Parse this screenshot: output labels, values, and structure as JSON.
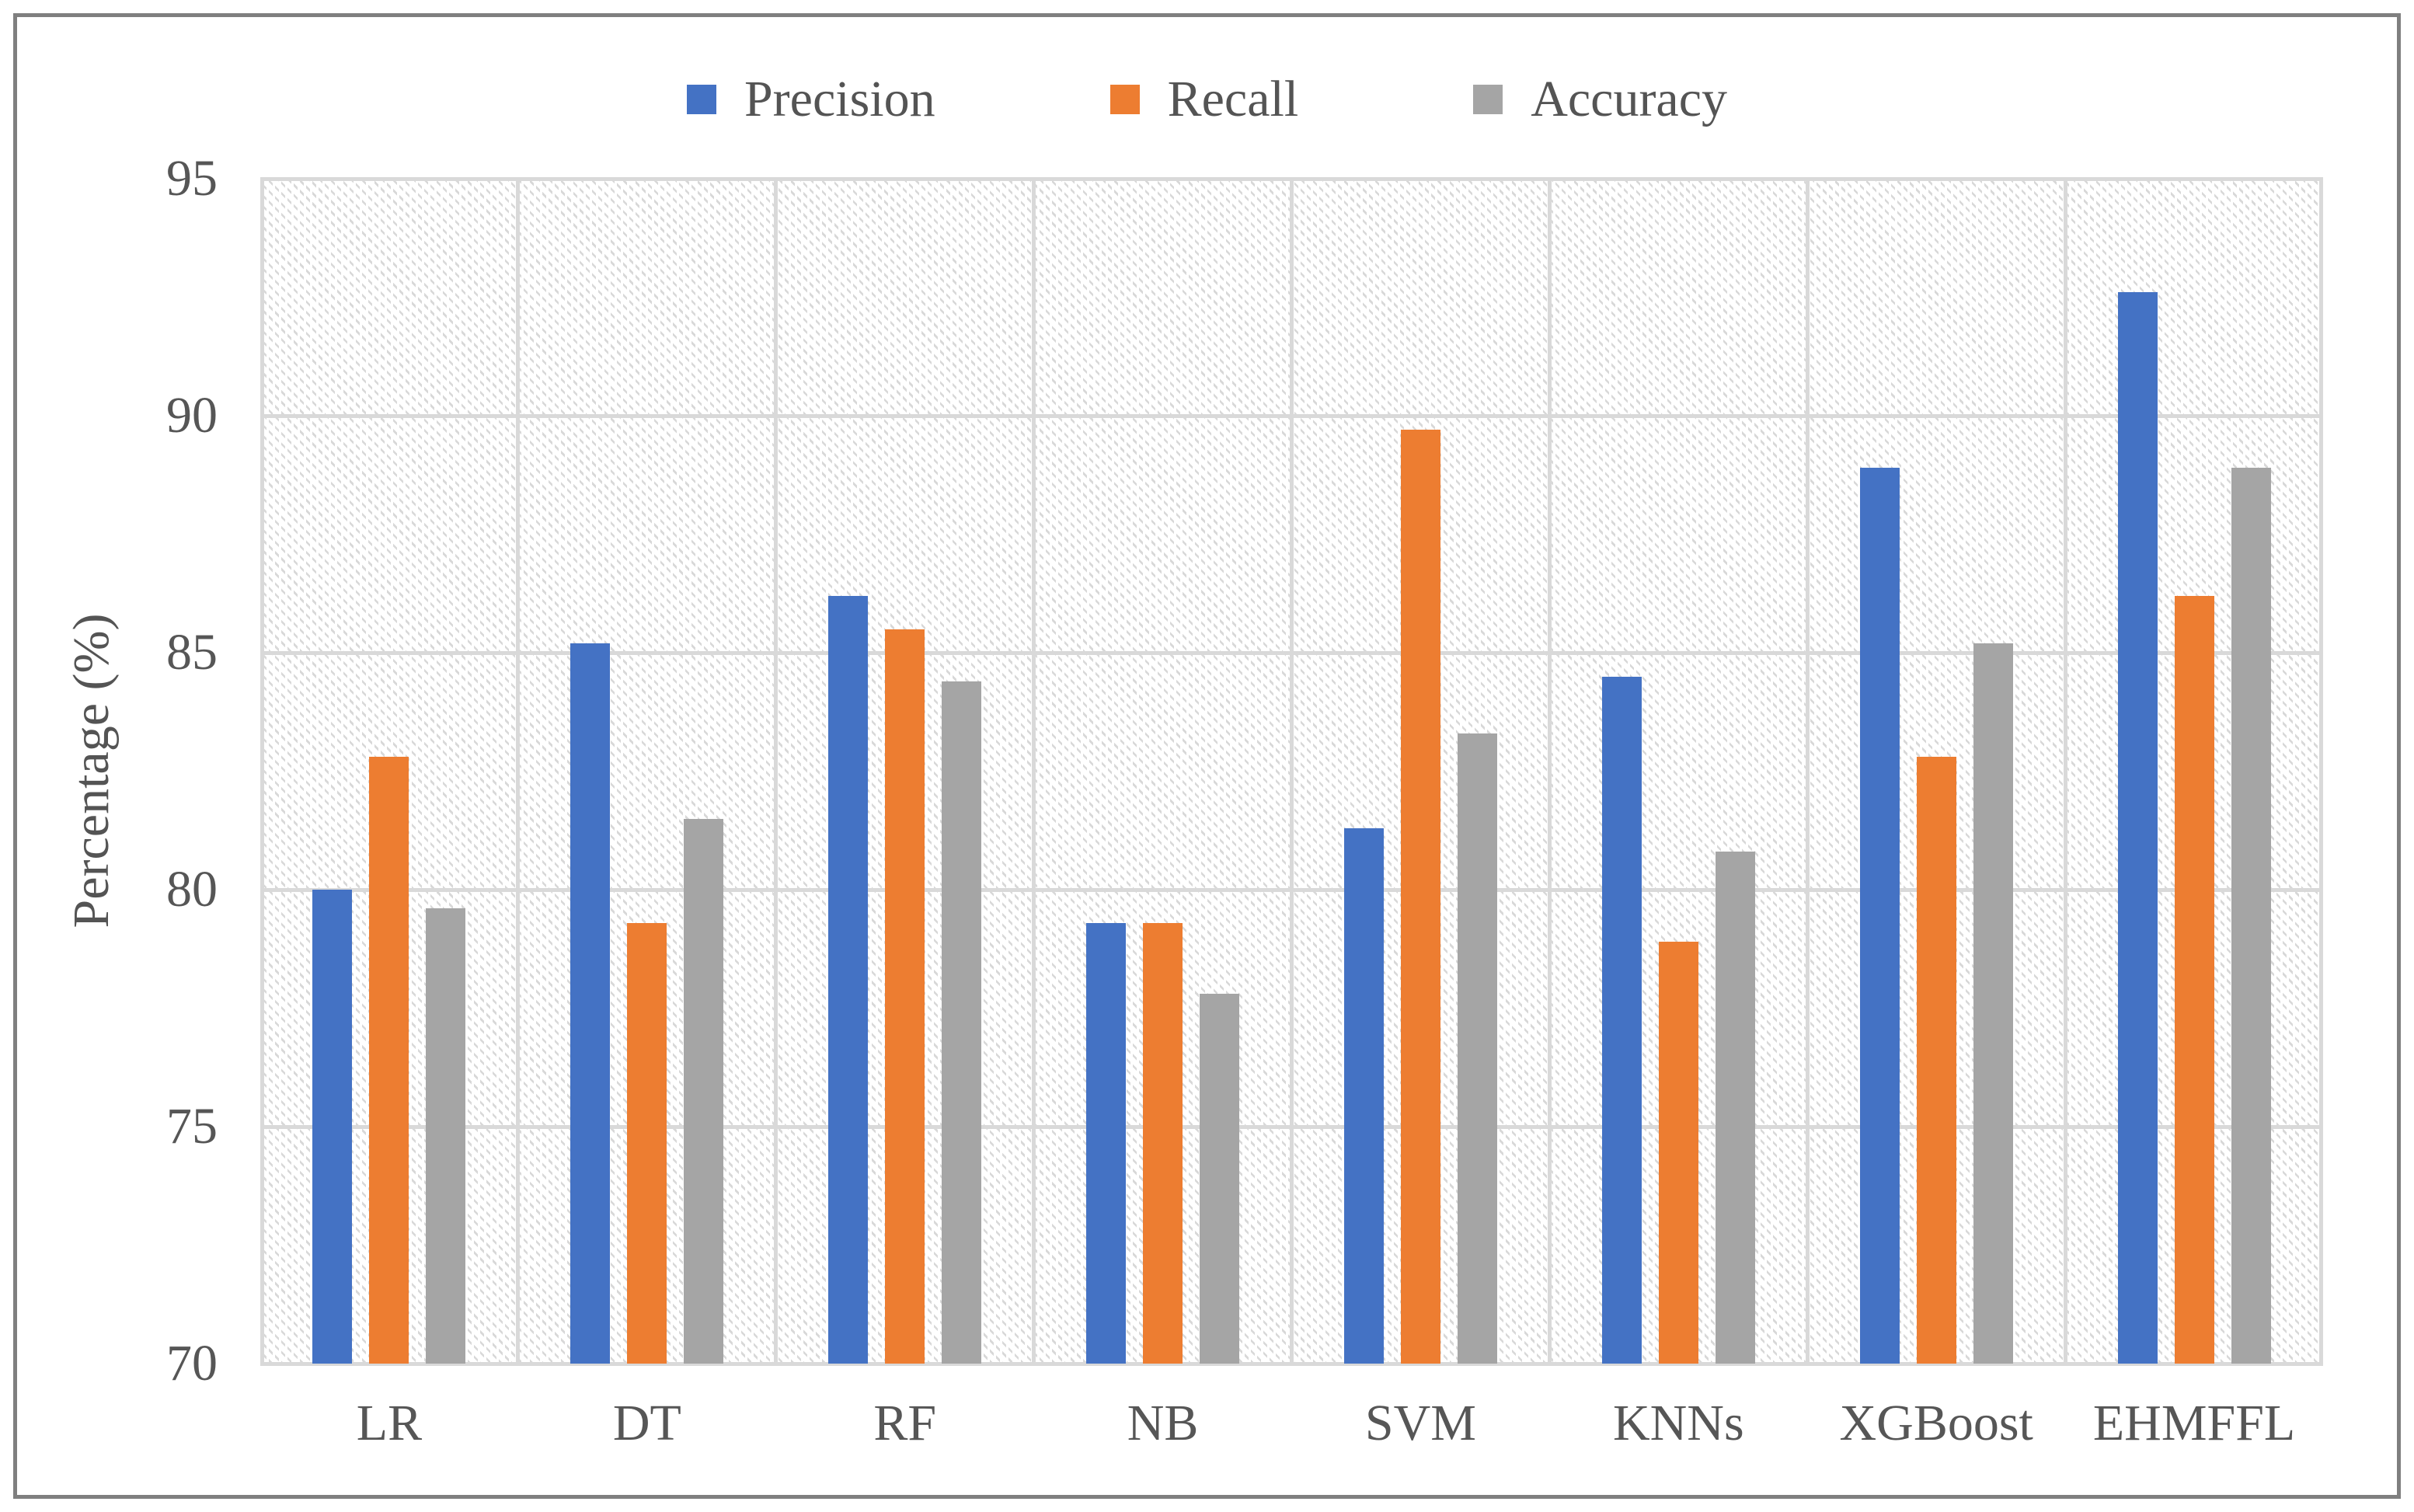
{
  "figure": {
    "border_color": "#7f7f7f",
    "background_color": "#ffffff",
    "text_color": "#565656",
    "gridline_color": "#d9d9d9",
    "hatch_color": "#d8d8d8"
  },
  "chart_data": {
    "type": "bar",
    "title": "",
    "xlabel": "",
    "ylabel": "Percentage (%)",
    "categories": [
      "LR",
      "DT",
      "RF",
      "NB",
      "SVM",
      "KNNs",
      "XGBoost",
      "EHMFFL"
    ],
    "series": [
      {
        "name": "Precision",
        "color": "#4472C4",
        "values": [
          80.0,
          85.2,
          86.2,
          79.3,
          81.3,
          84.5,
          88.9,
          92.6
        ]
      },
      {
        "name": "Recall",
        "color": "#ED7D31",
        "values": [
          82.8,
          79.3,
          85.5,
          79.3,
          89.7,
          78.9,
          82.8,
          86.2
        ]
      },
      {
        "name": "Accuracy",
        "color": "#A5A5A5",
        "values": [
          79.6,
          81.5,
          84.4,
          77.8,
          83.3,
          80.8,
          85.2,
          88.9
        ]
      }
    ],
    "ylim": [
      70,
      95
    ],
    "yticks": [
      70,
      75,
      80,
      85,
      90,
      95
    ],
    "grid": true,
    "plot_background": "light-diagonal-hatch",
    "legend_position": "top"
  }
}
